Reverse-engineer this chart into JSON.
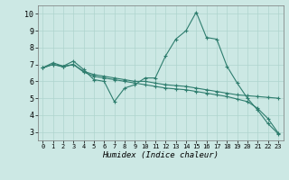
{
  "xlabel": "Humidex (Indice chaleur)",
  "ylabel": "",
  "bg_color": "#cce8e4",
  "line_color": "#2e7d6e",
  "grid_color": "#aed4ce",
  "xlim": [
    -0.5,
    23.5
  ],
  "ylim": [
    2.5,
    10.5
  ],
  "xticks": [
    0,
    1,
    2,
    3,
    4,
    5,
    6,
    7,
    8,
    9,
    10,
    11,
    12,
    13,
    14,
    15,
    16,
    17,
    18,
    19,
    20,
    21,
    22,
    23
  ],
  "yticks": [
    3,
    4,
    5,
    6,
    7,
    8,
    9,
    10
  ],
  "series1_x": [
    0,
    1,
    2,
    3,
    4,
    5,
    6,
    7,
    8,
    9,
    10,
    11,
    12,
    13,
    14,
    15,
    16,
    17,
    18,
    19,
    20,
    21,
    22,
    23
  ],
  "series1_y": [
    6.8,
    7.1,
    6.9,
    7.2,
    6.7,
    6.1,
    6.0,
    4.8,
    5.6,
    5.8,
    6.2,
    6.2,
    7.5,
    8.5,
    9.0,
    10.1,
    8.6,
    8.5,
    6.9,
    5.9,
    5.0,
    4.3,
    3.5,
    2.9
  ],
  "series2_x": [
    0,
    1,
    2,
    3,
    4,
    5,
    6,
    7,
    8,
    9,
    10,
    11,
    12,
    13,
    14,
    15,
    16,
    17,
    18,
    19,
    20,
    21,
    22,
    23
  ],
  "series2_y": [
    6.8,
    7.0,
    6.9,
    7.0,
    6.6,
    6.4,
    6.3,
    6.2,
    6.1,
    6.0,
    6.0,
    5.9,
    5.8,
    5.75,
    5.7,
    5.6,
    5.5,
    5.4,
    5.3,
    5.2,
    5.15,
    5.1,
    5.05,
    5.0
  ],
  "series3_x": [
    0,
    1,
    2,
    3,
    4,
    5,
    6,
    7,
    8,
    9,
    10,
    11,
    12,
    13,
    14,
    15,
    16,
    17,
    18,
    19,
    20,
    21,
    22,
    23
  ],
  "series3_y": [
    6.8,
    7.0,
    6.85,
    7.0,
    6.55,
    6.3,
    6.2,
    6.1,
    6.0,
    5.9,
    5.8,
    5.7,
    5.6,
    5.55,
    5.5,
    5.4,
    5.3,
    5.2,
    5.1,
    4.95,
    4.8,
    4.4,
    3.8,
    2.95
  ]
}
